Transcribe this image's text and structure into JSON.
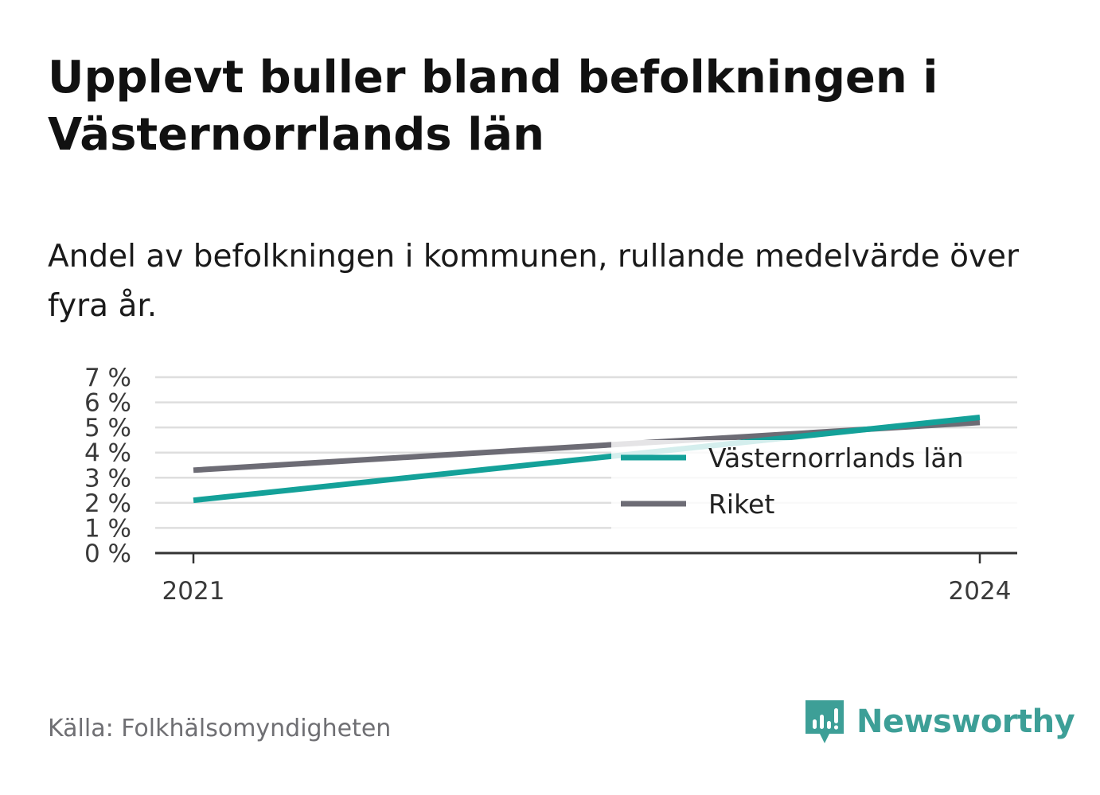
{
  "title": "Upplevt buller bland befolkningen i Västernorrlands län",
  "subtitle": "Andel av befolkningen i kommunen, rullande medelvärde över fyra år.",
  "source": "Källa: Folkhälsomyndigheten",
  "brand": {
    "name": "Newsworthy",
    "icon": "newsworthy-logo-icon",
    "color": "#3d9f97"
  },
  "chart_data": {
    "type": "line",
    "x": [
      "2021",
      "2024"
    ],
    "ylim": [
      0,
      7
    ],
    "y_ticks": [
      0,
      1,
      2,
      3,
      4,
      5,
      6,
      7
    ],
    "y_tick_labels": [
      "0 %",
      "1 %",
      "2 %",
      "3 %",
      "4 %",
      "5 %",
      "6 %",
      "7 %"
    ],
    "x_tick_labels": [
      "2021",
      "2024"
    ],
    "grid": true,
    "legend_position": "right",
    "series": [
      {
        "name": "Västernorrlands län",
        "values": [
          2.1,
          5.4
        ],
        "color": "#14a199"
      },
      {
        "name": "Riket",
        "values": [
          3.3,
          5.2
        ],
        "color": "#6d6c75"
      }
    ]
  }
}
